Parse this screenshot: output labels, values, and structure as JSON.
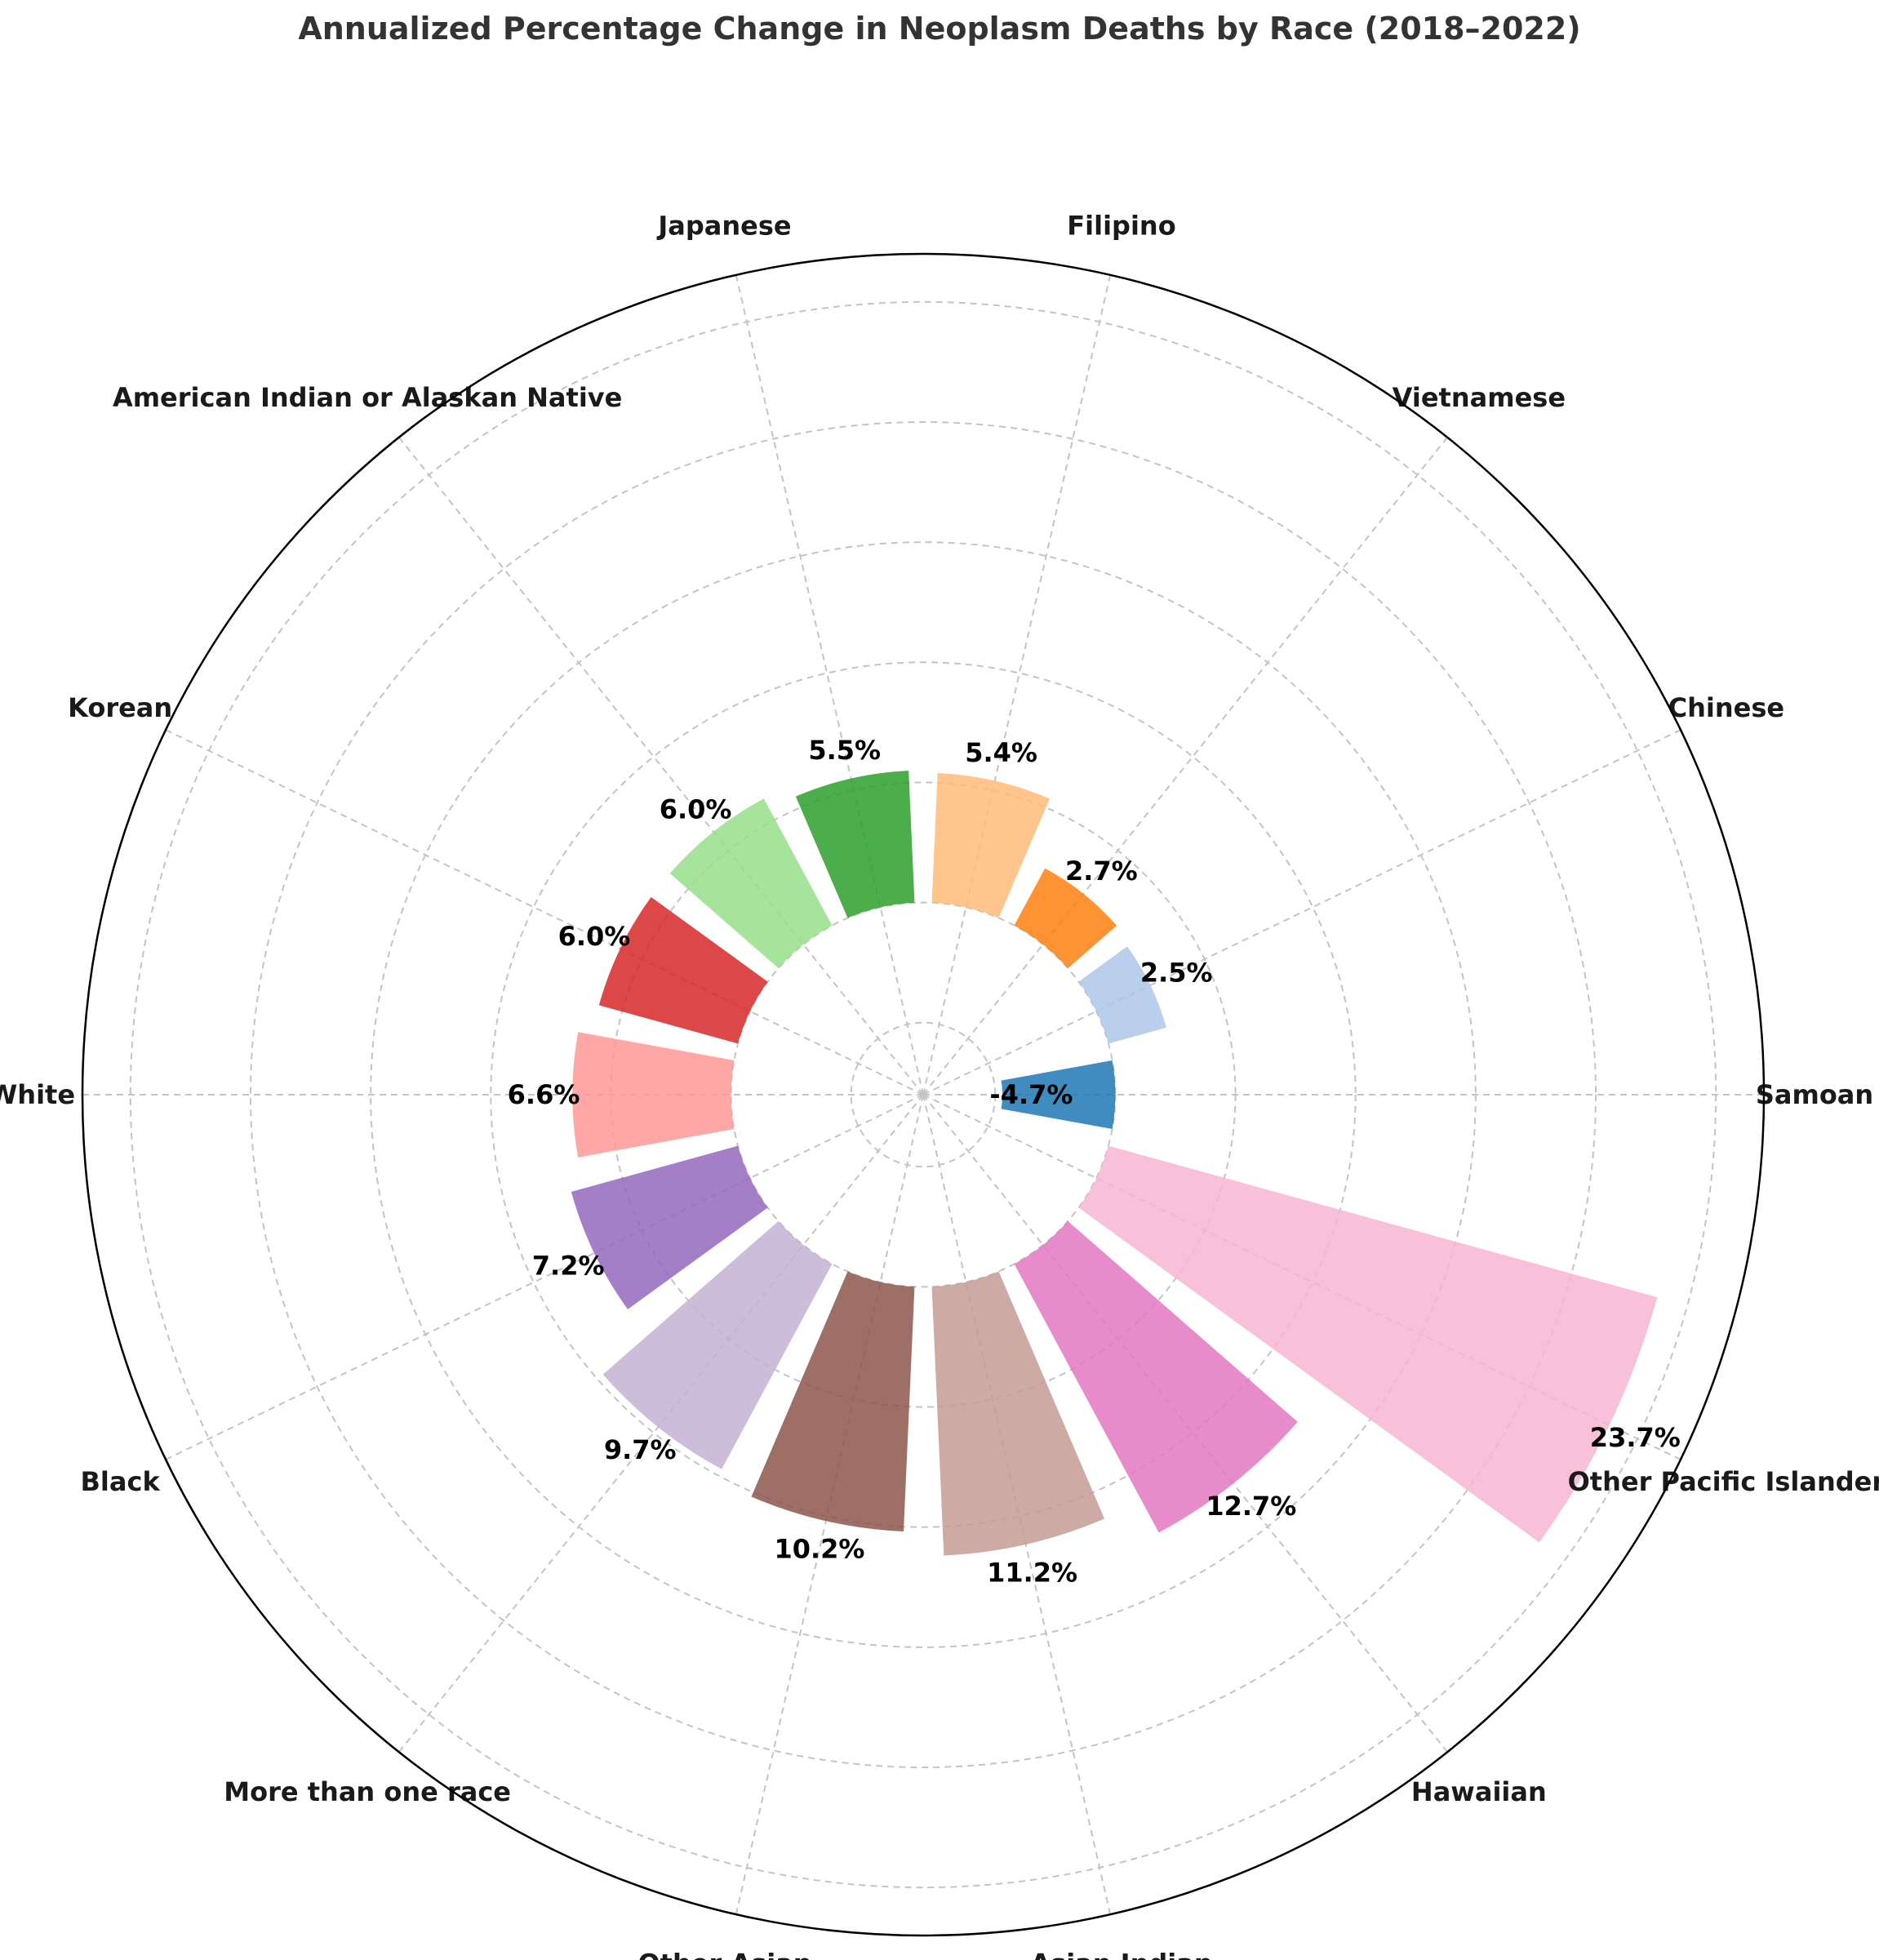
{
  "chart_data": {
    "type": "bar",
    "subtype": "polar-bar",
    "title": "Annualized Percentage Change in Neoplasm Deaths by Race (2018–2022)",
    "xlabel": "",
    "ylabel": "",
    "grid": true,
    "radial_ylim": [
      -8,
      27
    ],
    "categories": [
      "Samoan",
      "Chinese",
      "Vietnamese",
      "Filipino",
      "Japanese",
      "American Indian or Alaskan Native",
      "Korean",
      "White",
      "Black",
      "More than one race",
      "Other Asian",
      "Asian Indian",
      "Hawaiian",
      "Other Pacific Islander"
    ],
    "values": [
      -4.7,
      2.5,
      2.7,
      5.4,
      5.5,
      6.0,
      6.0,
      6.6,
      7.2,
      9.7,
      10.2,
      11.2,
      12.7,
      23.7
    ],
    "value_labels": [
      "-4.7%",
      "2.5%",
      "2.7%",
      "5.4%",
      "5.5%",
      "6.0%",
      "6.0%",
      "6.6%",
      "7.2%",
      "9.7%",
      "10.2%",
      "11.2%",
      "12.7%",
      "23.7%"
    ],
    "colors": [
      "#1f77b4",
      "#aec7e8",
      "#ff7f0e",
      "#ffbb78",
      "#2ca02c",
      "#98df8a",
      "#d62728",
      "#ff9896",
      "#9467bd",
      "#c5b0d5",
      "#8c564b",
      "#c49c94",
      "#e377c2",
      "#f7b6d2"
    ]
  }
}
